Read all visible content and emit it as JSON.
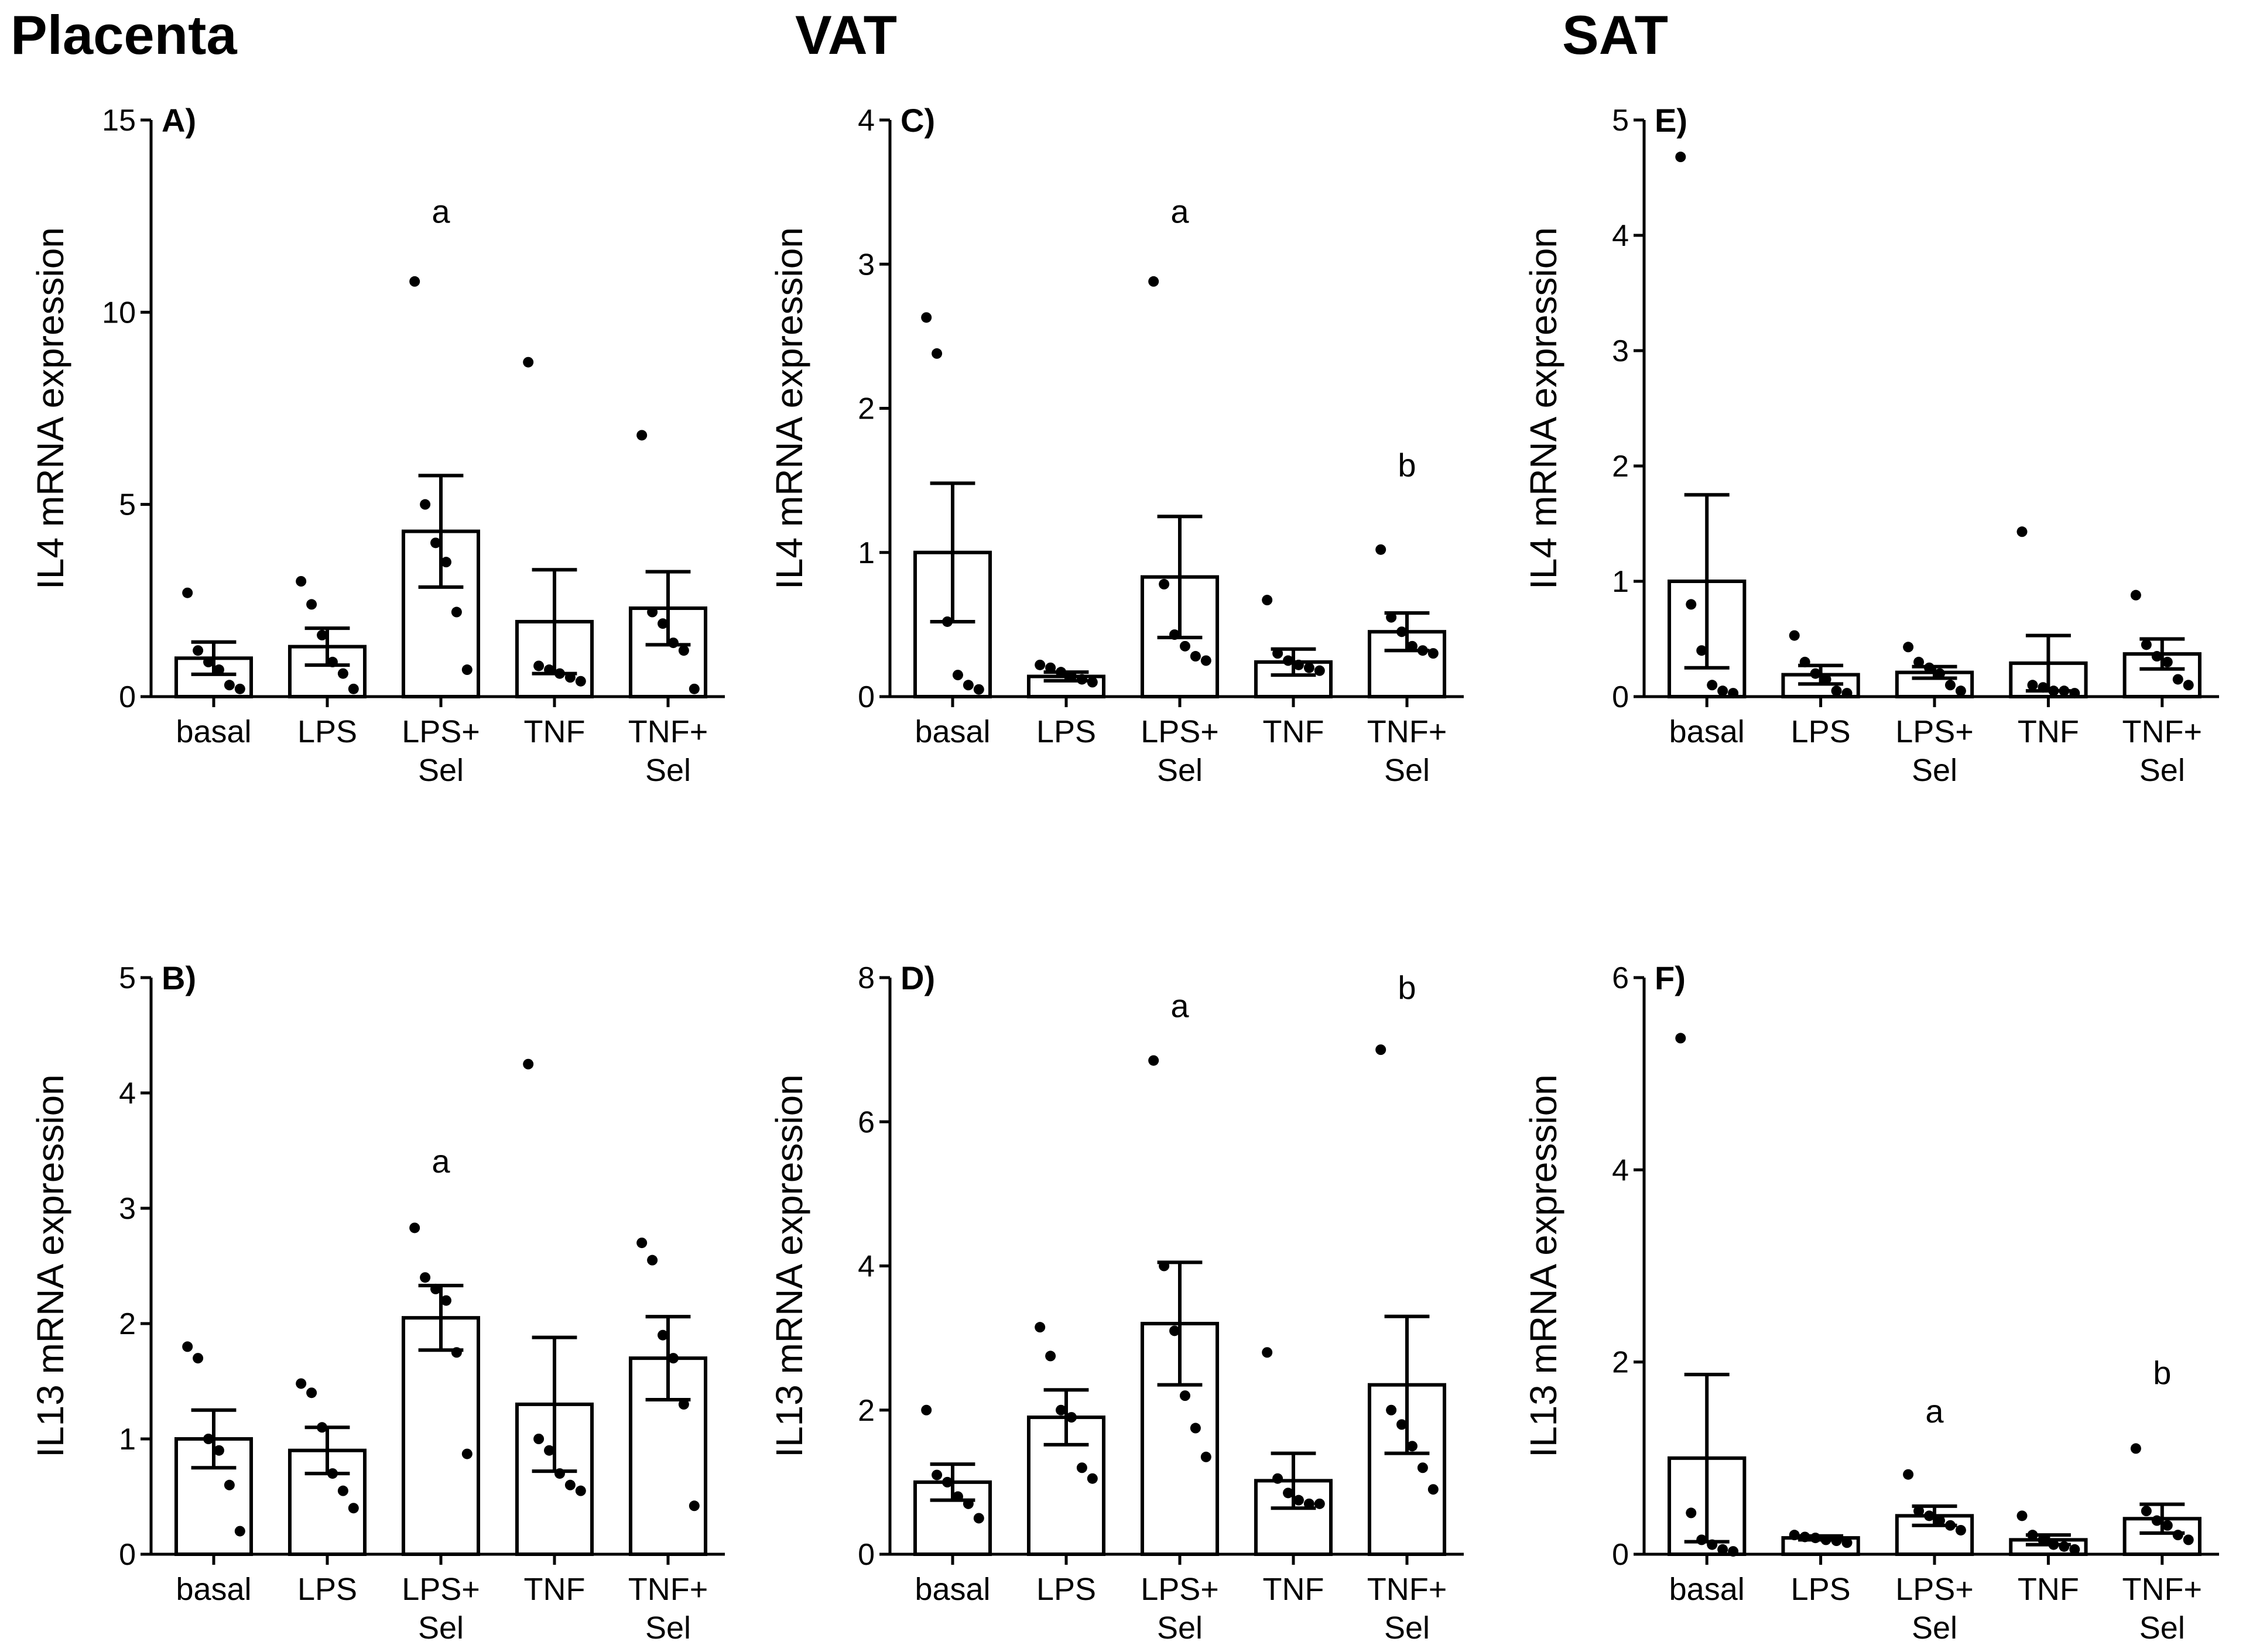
{
  "section_titles": [
    "Placenta",
    "VAT",
    "SAT"
  ],
  "chart_data": [
    {
      "panel": "A)",
      "section": "Placenta",
      "type": "bar",
      "ylabel": "IL4 mRNA expression",
      "ylim": [
        0,
        15
      ],
      "yticks": [
        0,
        5,
        10,
        15
      ],
      "categories": [
        [
          "basal"
        ],
        [
          "LPS"
        ],
        [
          "LPS+",
          "Sel"
        ],
        [
          "TNF"
        ],
        [
          "TNF+",
          "Sel"
        ]
      ],
      "means": [
        1.0,
        1.3,
        4.3,
        1.95,
        2.3
      ],
      "sem": [
        0.42,
        0.48,
        1.45,
        1.35,
        0.95
      ],
      "points": [
        [
          2.7,
          1.2,
          0.9,
          0.7,
          0.3,
          0.2
        ],
        [
          3.0,
          2.4,
          1.6,
          0.9,
          0.6,
          0.2
        ],
        [
          10.8,
          5.0,
          4.0,
          3.5,
          2.2,
          0.7
        ],
        [
          8.7,
          0.8,
          0.7,
          0.6,
          0.5,
          0.4
        ],
        [
          6.8,
          2.2,
          1.9,
          1.4,
          1.2,
          0.2
        ]
      ],
      "annotations": [
        {
          "category": 2,
          "label": "a",
          "y": 12.6
        }
      ]
    },
    {
      "panel": "B)",
      "section": "Placenta",
      "type": "bar",
      "ylabel": "IL13 mRNA expression",
      "ylim": [
        0,
        5
      ],
      "yticks": [
        0,
        1,
        2,
        3,
        4,
        5
      ],
      "categories": [
        [
          "basal"
        ],
        [
          "LPS"
        ],
        [
          "LPS+",
          "Sel"
        ],
        [
          "TNF"
        ],
        [
          "TNF+",
          "Sel"
        ]
      ],
      "means": [
        1.0,
        0.9,
        2.05,
        1.3,
        1.7
      ],
      "sem": [
        0.25,
        0.2,
        0.28,
        0.58,
        0.36
      ],
      "points": [
        [
          1.8,
          1.7,
          1.0,
          0.9,
          0.6,
          0.2
        ],
        [
          1.48,
          1.4,
          1.1,
          0.7,
          0.55,
          0.4
        ],
        [
          2.83,
          2.4,
          2.3,
          2.2,
          1.75,
          0.87
        ],
        [
          4.25,
          1.0,
          0.9,
          0.7,
          0.6,
          0.55
        ],
        [
          2.7,
          2.55,
          1.9,
          1.7,
          1.3,
          0.42
        ]
      ],
      "annotations": [
        {
          "category": 2,
          "label": "a",
          "y": 3.4
        }
      ]
    },
    {
      "panel": "C)",
      "section": "VAT",
      "type": "bar",
      "ylabel": "IL4 mRNA expression",
      "ylim": [
        0,
        4
      ],
      "yticks": [
        0,
        1,
        2,
        3,
        4
      ],
      "categories": [
        [
          "basal"
        ],
        [
          "LPS"
        ],
        [
          "LPS+",
          "Sel"
        ],
        [
          "TNF"
        ],
        [
          "TNF+",
          "Sel"
        ]
      ],
      "means": [
        1.0,
        0.14,
        0.83,
        0.24,
        0.45
      ],
      "sem": [
        0.48,
        0.03,
        0.42,
        0.09,
        0.13
      ],
      "points": [
        [
          2.63,
          2.38,
          0.52,
          0.15,
          0.08,
          0.05
        ],
        [
          0.22,
          0.2,
          0.17,
          0.14,
          0.12,
          0.1
        ],
        [
          2.88,
          0.78,
          0.43,
          0.35,
          0.28,
          0.25
        ],
        [
          0.67,
          0.3,
          0.25,
          0.22,
          0.2,
          0.18
        ],
        [
          1.02,
          0.55,
          0.45,
          0.35,
          0.32,
          0.3
        ]
      ],
      "annotations": [
        {
          "category": 2,
          "label": "a",
          "y": 3.36
        },
        {
          "category": 4,
          "label": "b",
          "y": 1.6
        }
      ]
    },
    {
      "panel": "D)",
      "section": "VAT",
      "type": "bar",
      "ylabel": "IL13 mRNA expression",
      "ylim": [
        0,
        8
      ],
      "yticks": [
        0,
        2,
        4,
        6,
        8
      ],
      "categories": [
        [
          "basal"
        ],
        [
          "LPS"
        ],
        [
          "LPS+",
          "Sel"
        ],
        [
          "TNF"
        ],
        [
          "TNF+",
          "Sel"
        ]
      ],
      "means": [
        1.0,
        1.9,
        3.2,
        1.02,
        2.35
      ],
      "sem": [
        0.25,
        0.38,
        0.85,
        0.38,
        0.95
      ],
      "points": [
        [
          2.0,
          1.1,
          1.0,
          0.8,
          0.7,
          0.5
        ],
        [
          3.15,
          2.75,
          2.0,
          1.9,
          1.2,
          1.05
        ],
        [
          6.85,
          4.0,
          3.1,
          2.2,
          1.75,
          1.35
        ],
        [
          2.8,
          1.05,
          0.85,
          0.75,
          0.7,
          0.7
        ],
        [
          7.0,
          2.0,
          1.8,
          1.5,
          1.2,
          0.9
        ]
      ],
      "annotations": [
        {
          "category": 2,
          "label": "a",
          "y": 7.6
        },
        {
          "category": 4,
          "label": "b",
          "y": 7.85
        }
      ]
    },
    {
      "panel": "E)",
      "section": "SAT",
      "type": "bar",
      "ylabel": "IL4 mRNA expression",
      "ylim": [
        0,
        5
      ],
      "yticks": [
        0,
        1,
        2,
        3,
        4,
        5
      ],
      "categories": [
        [
          "basal"
        ],
        [
          "LPS"
        ],
        [
          "LPS+",
          "Sel"
        ],
        [
          "TNF"
        ],
        [
          "TNF+",
          "Sel"
        ]
      ],
      "means": [
        1.0,
        0.19,
        0.21,
        0.29,
        0.37
      ],
      "sem": [
        0.75,
        0.08,
        0.05,
        0.24,
        0.13
      ],
      "points": [
        [
          4.68,
          0.8,
          0.4,
          0.1,
          0.05,
          0.03
        ],
        [
          0.53,
          0.3,
          0.2,
          0.15,
          0.05,
          0.03
        ],
        [
          0.43,
          0.3,
          0.25,
          0.2,
          0.1,
          0.05
        ],
        [
          1.43,
          0.1,
          0.08,
          0.05,
          0.05,
          0.03
        ],
        [
          0.88,
          0.45,
          0.35,
          0.3,
          0.15,
          0.1
        ]
      ],
      "annotations": []
    },
    {
      "panel": "F)",
      "section": "SAT",
      "type": "bar",
      "ylabel": "IL13 mRNA expression",
      "ylim": [
        0,
        6
      ],
      "yticks": [
        0,
        2,
        4,
        6
      ],
      "categories": [
        [
          "basal"
        ],
        [
          "LPS"
        ],
        [
          "LPS+",
          "Sel"
        ],
        [
          "TNF"
        ],
        [
          "TNF+",
          "Sel"
        ]
      ],
      "means": [
        1.0,
        0.17,
        0.4,
        0.15,
        0.37
      ],
      "sem": [
        0.87,
        0.02,
        0.1,
        0.05,
        0.15
      ],
      "points": [
        [
          5.37,
          0.43,
          0.15,
          0.1,
          0.05,
          0.03
        ],
        [
          0.2,
          0.18,
          0.17,
          0.15,
          0.14,
          0.12
        ],
        [
          0.83,
          0.45,
          0.4,
          0.35,
          0.3,
          0.25
        ],
        [
          0.4,
          0.2,
          0.15,
          0.1,
          0.08,
          0.05
        ],
        [
          1.1,
          0.45,
          0.35,
          0.3,
          0.2,
          0.15
        ]
      ],
      "annotations": [
        {
          "category": 2,
          "label": "a",
          "y": 1.48
        },
        {
          "category": 4,
          "label": "b",
          "y": 1.88
        }
      ]
    }
  ]
}
